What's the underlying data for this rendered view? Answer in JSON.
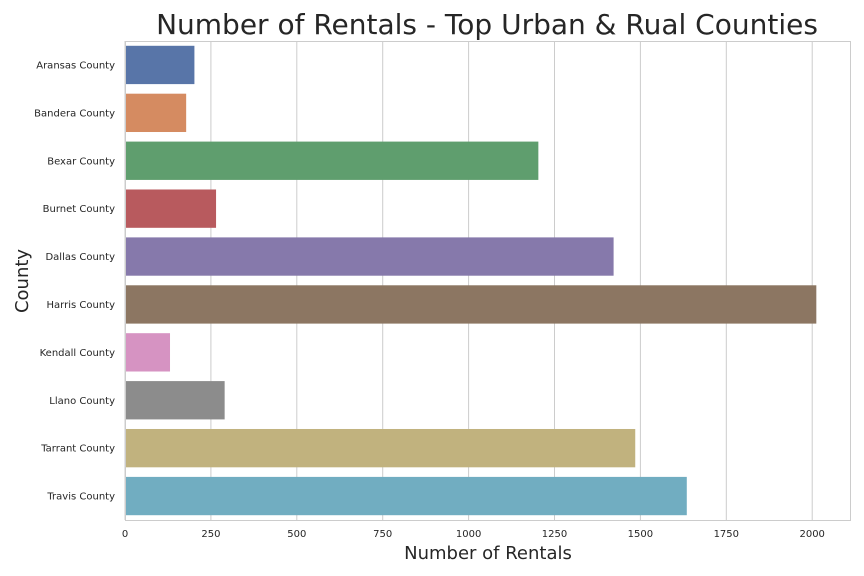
{
  "chart_data": {
    "type": "bar",
    "orientation": "horizontal",
    "title": "Number of Rentals - Top Urban & Rual Counties",
    "xlabel": "Number of Rentals",
    "ylabel": "County",
    "xlim": [
      0,
      2110
    ],
    "xticks": [
      0,
      250,
      500,
      750,
      1000,
      1250,
      1500,
      1750,
      2000
    ],
    "grid": true,
    "categories": [
      "Aransas County",
      "Bandera County",
      "Bexar County",
      "Burnet County",
      "Dallas County",
      "Harris County",
      "Kendall County",
      "Llano County",
      "Tarrant County",
      "Travis County"
    ],
    "values": [
      202,
      178,
      1203,
      265,
      1422,
      2012,
      131,
      290,
      1485,
      1635
    ],
    "colors": [
      "#5875a8",
      "#d58b61",
      "#5f9e6e",
      "#b85a5e",
      "#8679ab",
      "#8c7662",
      "#d693c2",
      "#8c8c8c",
      "#c1b27e",
      "#71adc1"
    ]
  }
}
